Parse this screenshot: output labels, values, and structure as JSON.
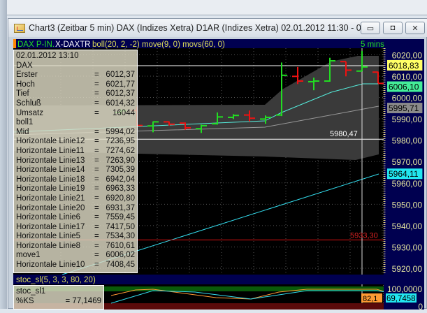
{
  "window": {
    "title": "Chart3 (Zeitbar 5 min)  DAX (Indizes Xetra) D1AR (Indizes Xetra) 02.01.2012 11:30 - 02.01....",
    "minimize": "▭",
    "restore": "◘",
    "close": "✕"
  },
  "chart_header": {
    "instrument": "DAX P-IN.",
    "instrument2": "X-DAXTR",
    "indicators": "boll(20, 2, -2) move(9, 0) movs(60, 0)",
    "interval": "5 mins"
  },
  "info_panel": {
    "datetime": "02.01.2012    13:10",
    "symbol": "DAX",
    "rows": [
      {
        "label": "Erster",
        "value": "6012,37"
      },
      {
        "label": "Hoch",
        "value": "6021,77"
      },
      {
        "label": "Tief",
        "value": "6012,37"
      },
      {
        "label": "Schluß",
        "value": "6014,32"
      },
      {
        "label": "Umsatz",
        "value": "16044"
      },
      {
        "label": "boll1",
        "value": ""
      },
      {
        "label": "Mid",
        "value": "5994,02"
      },
      {
        "label": "Horizontale Linie12",
        "value": "7236,95"
      },
      {
        "label": "Horizontale Linie11",
        "value": "7274,62"
      },
      {
        "label": "Horizontale Linie13",
        "value": "7263,90"
      },
      {
        "label": "Horizontale Linie14",
        "value": "7305,39"
      },
      {
        "label": "Horizontale Linie18",
        "value": "6942,04"
      },
      {
        "label": "Horizontale Linie19",
        "value": "6963,33"
      },
      {
        "label": "Horizontale Linie21",
        "value": "6920,80"
      },
      {
        "label": "Horizontale Linie20",
        "value": "6931,37"
      },
      {
        "label": "Horizontale Linie6",
        "value": "7559,45"
      },
      {
        "label": "Horizontale Linie17",
        "value": "7417,50"
      },
      {
        "label": "Horizontale Linie5",
        "value": "7534,30"
      },
      {
        "label": "Horizontale Linie8",
        "value": "7610,61"
      },
      {
        "label": "move1",
        "value": "6006,02"
      },
      {
        "label": "Horizontale Linie10",
        "value": "7408,45"
      }
    ]
  },
  "price_axis": {
    "ticks": [
      6020,
      6010,
      6000,
      5990,
      5980,
      5970,
      5960,
      5950,
      5940,
      5930,
      5920
    ],
    "tick_labels": [
      "6020,00",
      "6010,00",
      "6000,00",
      "5990,00",
      "5980,00",
      "5970,00",
      "5960,00",
      "5950,00",
      "5940,00",
      "5930,00",
      "5920,00"
    ]
  },
  "price_markers": [
    {
      "value": 6018.83,
      "label": "6018,83",
      "color": "#ffff66"
    },
    {
      "value": 6006.1,
      "label": "6006,10",
      "color": "#44ee99"
    },
    {
      "value": 5995.71,
      "label": "5995,71",
      "color": "#8a8a8a"
    },
    {
      "value": 5964.11,
      "label": "5964,11",
      "color": "#22e6f0"
    }
  ],
  "lines": {
    "white_level_label": "5980,47",
    "white_level": 5980.47,
    "white_level2": 6014.9,
    "red_level_label": "5933,30",
    "red_level": 5933.3
  },
  "colors": {
    "up": "#22dd22",
    "down": "#ee1111",
    "band": "#3a3a3a",
    "move": "#55eedd",
    "movs": "#999999",
    "trend": "#33ddee",
    "axis_bg": "#000050",
    "header_bg": "#000050"
  },
  "bars": [
    {
      "o": 5993.0,
      "h": 5994.5,
      "l": 5992.0,
      "c": 5993.8
    },
    {
      "o": 5993.9,
      "h": 5995.7,
      "l": 5986.4,
      "c": 5986.9
    },
    {
      "o": 5986.7,
      "h": 5988.8,
      "l": 5983.7,
      "c": 5988.6
    },
    {
      "o": 5988.6,
      "h": 5988.8,
      "l": 5986.9,
      "c": 5987.5
    },
    {
      "o": 5988.0,
      "h": 5988.3,
      "l": 5984.9,
      "c": 5985.8
    },
    {
      "o": 5985.4,
      "h": 5987.3,
      "l": 5983.4,
      "c": 5986.8
    },
    {
      "o": 5987.7,
      "h": 5993.0,
      "l": 5987.3,
      "c": 5990.9
    },
    {
      "o": 5990.7,
      "h": 5992.2,
      "l": 5989.9,
      "c": 5991.6
    },
    {
      "o": 5991.8,
      "h": 5993.9,
      "l": 5988.8,
      "c": 5990.3
    },
    {
      "o": 5989.9,
      "h": 5991.6,
      "l": 5987.7,
      "c": 5990.7
    },
    {
      "o": 5991.8,
      "h": 6016.4,
      "l": 5991.3,
      "c": 6010.4
    },
    {
      "o": 6009.9,
      "h": 6014.3,
      "l": 6006.3,
      "c": 6007.7
    },
    {
      "o": 6007.4,
      "h": 6009.3,
      "l": 6003.4,
      "c": 6007.7
    },
    {
      "o": 6007.7,
      "h": 6018.6,
      "l": 6007.4,
      "c": 6017.2
    },
    {
      "o": 6016.8,
      "h": 6016.8,
      "l": 6009.9,
      "c": 6012.8
    },
    {
      "o": 6012.37,
      "h": 6021.77,
      "l": 6012.37,
      "c": 6014.32
    },
    {
      "o": 6011.9,
      "h": 6012.1,
      "l": 6006.6,
      "c": 6006.6
    }
  ],
  "stoch": {
    "header": "stoc_sl(5, 3, 3, 80, 20)",
    "legend_name": "stoc_sl1",
    "legend_label": "%KS",
    "legend_value": "= 77,1469",
    "axis_top": "100,0000",
    "axis_bottom": "0",
    "k_label": "69,7458",
    "d_label": "82,1"
  }
}
